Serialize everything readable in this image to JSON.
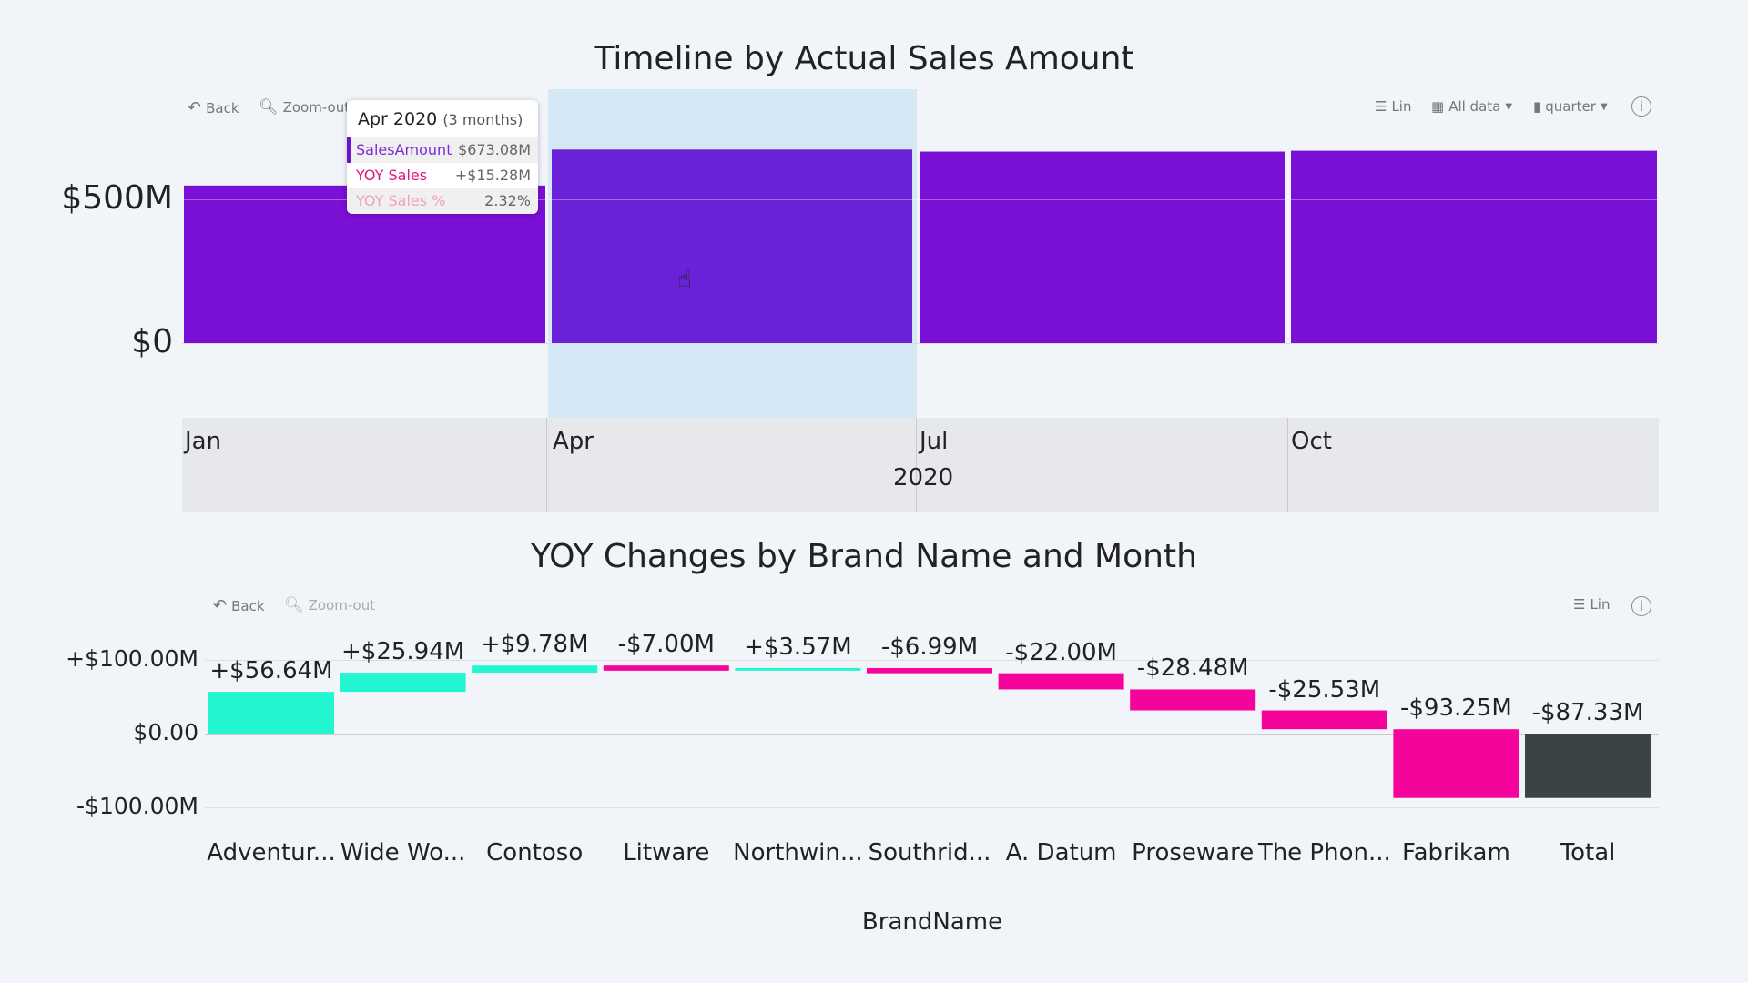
{
  "timeline": {
    "title": "Timeline by Actual Sales Amount",
    "toolbar": {
      "back": "Back",
      "zoom_out": "Zoom-out",
      "scale": "Lin",
      "range": "All data",
      "granularity": "quarter"
    },
    "y_ticks": [
      "$500M",
      "$0"
    ],
    "x_ticks": [
      "Jan",
      "Apr",
      "Jul",
      "Oct"
    ],
    "year": "2020",
    "tooltip": {
      "header": "Apr 2020",
      "sub": "(3 months)",
      "rows": [
        {
          "label": "SalesAmount",
          "value": "$673.08M",
          "color": "#7b2bd9"
        },
        {
          "label": "YOY Sales",
          "value": "+$15.28M",
          "color": "#e0157f"
        },
        {
          "label": "YOY Sales %",
          "value": "2.32%",
          "color": "#f0a0c0"
        }
      ]
    }
  },
  "waterfall": {
    "title": "YOY Changes by Brand Name and Month",
    "toolbar": {
      "back": "Back",
      "zoom_out": "Zoom-out",
      "scale": "Lin"
    },
    "y_ticks": [
      "+$100.00M",
      "$0.00",
      "-$100.00M"
    ],
    "xlabel": "BrandName"
  },
  "chart_data": [
    {
      "type": "bar",
      "title": "Timeline by Actual Sales Amount",
      "categories": [
        "Jan",
        "Apr",
        "Jul",
        "Oct"
      ],
      "values": [
        548,
        673.08,
        666,
        669
      ],
      "unit": "$M",
      "ylim": [
        -200,
        750
      ],
      "xlabel": "2020",
      "highlighted": "Apr",
      "color": "#7a0fd6"
    },
    {
      "type": "bar",
      "subtype": "waterfall",
      "title": "YOY Changes by Brand Name and Month",
      "xlabel": "BrandName",
      "ylim": [
        -100,
        100
      ],
      "categories": [
        "Adventur...",
        "Wide Wo...",
        "Contoso",
        "Litware",
        "Northwin...",
        "Southrid...",
        "A. Datum",
        "Proseware",
        "The Phon...",
        "Fabrikam",
        "Total"
      ],
      "values": [
        56.64,
        25.94,
        9.78,
        -7.0,
        3.57,
        -6.99,
        -22.0,
        -28.48,
        -25.53,
        -93.25,
        -87.33
      ],
      "labels": [
        "+$56.64M",
        "+$25.94M",
        "+$9.78M",
        "-$7.00M",
        "+$3.57M",
        "-$6.99M",
        "-$22.00M",
        "-$28.48M",
        "-$25.53M",
        "-$93.25M",
        "-$87.33M"
      ],
      "colors": {
        "increase": "#22f5d0",
        "decrease": "#f5049b",
        "total": "#3c4347"
      }
    }
  ]
}
